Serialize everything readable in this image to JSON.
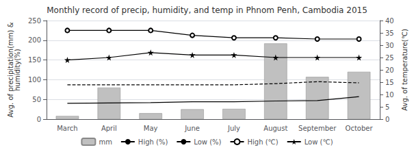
{
  "chart_data": {
    "type": "bar",
    "title": "Monthly record of precip, humidity, and temp in Phnom Penh, Cambodia 2015",
    "categories": [
      "March",
      "April",
      "May",
      "June",
      "July",
      "August",
      "September",
      "October"
    ],
    "ylabel": "Avg. of precipitation(mm) &\nhumidity(%)",
    "y2label": "Avg. of temperature(℃)",
    "ylim": [
      0,
      250
    ],
    "yticks": [
      0,
      50,
      100,
      150,
      200,
      250
    ],
    "y2lim": [
      0,
      40
    ],
    "y2ticks": [
      0,
      5,
      10,
      15,
      20,
      25,
      30,
      35,
      40
    ],
    "grid": true,
    "legend": "bottom",
    "series": [
      {
        "name": "mm",
        "type": "bar",
        "color": "#c0c0c0",
        "values": [
          8,
          80,
          15,
          25,
          26,
          192,
          107,
          120
        ]
      },
      {
        "name": "High (%)",
        "type": "line",
        "color": "#000000",
        "line_style": "dashed",
        "values": [
          87,
          87,
          87,
          87,
          87,
          90,
          95,
          92
        ]
      },
      {
        "name": "Low (%)",
        "type": "line",
        "color": "#000000",
        "line_style": "solid",
        "values": [
          40,
          41,
          42,
          44,
          44,
          46,
          47,
          57
        ]
      },
      {
        "name": "High (℃)",
        "type": "line",
        "color": "#000000",
        "line_style": "solid",
        "marker": "circle",
        "axis": "y2",
        "values": [
          36,
          36,
          36,
          34,
          33,
          33,
          32.5,
          32.5
        ]
      },
      {
        "name": "Low (℃)",
        "type": "line",
        "color": "#000000",
        "line_style": "solid",
        "marker": "star",
        "axis": "y2",
        "values": [
          24,
          25,
          27,
          26,
          26,
          25,
          25,
          25
        ]
      }
    ]
  }
}
